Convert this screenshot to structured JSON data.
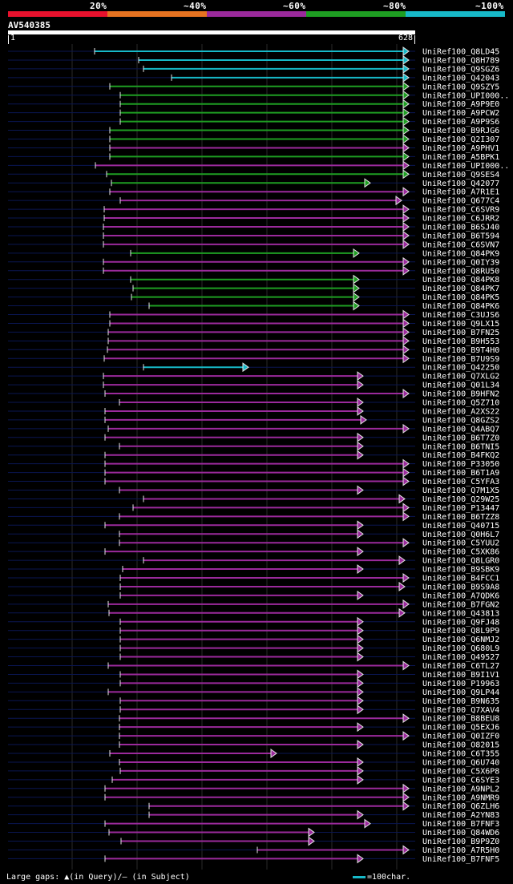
{
  "scale": {
    "labels": [
      "20%",
      "~40%",
      "~60%",
      "~80%",
      "~100%"
    ],
    "colors": [
      "#e8112d",
      "#e67321",
      "#9b2a9c",
      "#1e9e22",
      "#17b9c8"
    ]
  },
  "query": {
    "name": "AV540385",
    "start": "1",
    "end": "628"
  },
  "footer": {
    "gaps_text": "Large gaps: ▲(in Query)/– (in Subject)",
    "legend_text": "=100char."
  },
  "colors": {
    "cyan": "#17b9c8",
    "green": "#1e9e22",
    "purple": "#9b2a9c",
    "navy": "#0a1652",
    "head": "#e6e6e6"
  },
  "hits": [
    {
      "label": "UniRef100_Q8LD45",
      "color": "cyan"
    },
    {
      "label": "UniRef100_Q8H789",
      "color": "cyan"
    },
    {
      "label": "UniRef100_Q9SGZ6",
      "color": "cyan"
    },
    {
      "label": "UniRef100_Q42043",
      "color": "cyan"
    },
    {
      "label": "UniRef100_Q9SZY5",
      "color": "green"
    },
    {
      "label": "UniRef100_UPI000..",
      "color": "green"
    },
    {
      "label": "UniRef100_A9P9E0",
      "color": "green"
    },
    {
      "label": "UniRef100_A9PCW2",
      "color": "green"
    },
    {
      "label": "UniRef100_A9P9S6",
      "color": "green"
    },
    {
      "label": "UniRef100_B9RJG6",
      "color": "green"
    },
    {
      "label": "UniRef100_Q2I307",
      "color": "green"
    },
    {
      "label": "UniRef100_A9PHV1",
      "color": "purple"
    },
    {
      "label": "UniRef100_A5BPK1",
      "color": "green"
    },
    {
      "label": "UniRef100_UPI000..",
      "color": "purple"
    },
    {
      "label": "UniRef100_Q9SES4",
      "color": "green"
    },
    {
      "label": "UniRef100_Q42077",
      "color": "green"
    },
    {
      "label": "UniRef100_A7R1E1",
      "color": "purple"
    },
    {
      "label": "UniRef100_Q677C4",
      "color": "purple"
    },
    {
      "label": "UniRef100_C6SVR9",
      "color": "purple"
    },
    {
      "label": "UniRef100_C6JRR2",
      "color": "purple"
    },
    {
      "label": "UniRef100_B6SJ40",
      "color": "purple"
    },
    {
      "label": "UniRef100_B6T594",
      "color": "purple"
    },
    {
      "label": "UniRef100_C6SVN7",
      "color": "purple"
    },
    {
      "label": "UniRef100_Q84PK9",
      "color": "green"
    },
    {
      "label": "UniRef100_Q0IY39",
      "color": "purple"
    },
    {
      "label": "UniRef100_Q8RU50",
      "color": "purple"
    },
    {
      "label": "UniRef100_Q84PK8",
      "color": "green"
    },
    {
      "label": "UniRef100_Q84PK7",
      "color": "green"
    },
    {
      "label": "UniRef100_Q84PK5",
      "color": "green"
    },
    {
      "label": "UniRef100_Q84PK6",
      "color": "green"
    },
    {
      "label": "UniRef100_C3UJS6",
      "color": "purple"
    },
    {
      "label": "UniRef100_Q9LX15",
      "color": "purple"
    },
    {
      "label": "UniRef100_B7FN25",
      "color": "purple"
    },
    {
      "label": "UniRef100_B9H553",
      "color": "purple"
    },
    {
      "label": "UniRef100_B9T4H0",
      "color": "purple"
    },
    {
      "label": "UniRef100_B7U9S9",
      "color": "purple"
    },
    {
      "label": "UniRef100_Q42250",
      "color": "cyan"
    },
    {
      "label": "UniRef100_Q7XLG2",
      "color": "purple"
    },
    {
      "label": "UniRef100_Q01L34",
      "color": "purple"
    },
    {
      "label": "UniRef100_B9HFN2",
      "color": "purple"
    },
    {
      "label": "UniRef100_Q5Z710",
      "color": "purple"
    },
    {
      "label": "UniRef100_A2XS22",
      "color": "purple"
    },
    {
      "label": "UniRef100_Q8GZS2",
      "color": "purple"
    },
    {
      "label": "UniRef100_Q4ABQ7",
      "color": "purple"
    },
    {
      "label": "UniRef100_B6T7Z0",
      "color": "purple"
    },
    {
      "label": "UniRef100_B6TNI5",
      "color": "purple"
    },
    {
      "label": "UniRef100_B4FKQ2",
      "color": "purple"
    },
    {
      "label": "UniRef100_P33050",
      "color": "purple"
    },
    {
      "label": "UniRef100_B6T1A9",
      "color": "purple"
    },
    {
      "label": "UniRef100_C5YFA3",
      "color": "purple"
    },
    {
      "label": "UniRef100_Q7M1X5",
      "color": "purple"
    },
    {
      "label": "UniRef100_Q29W25",
      "color": "purple"
    },
    {
      "label": "UniRef100_P13447",
      "color": "purple"
    },
    {
      "label": "UniRef100_B6TZZ8",
      "color": "purple"
    },
    {
      "label": "UniRef100_Q40715",
      "color": "purple"
    },
    {
      "label": "UniRef100_Q0H6L7",
      "color": "purple"
    },
    {
      "label": "UniRef100_C5YUU2",
      "color": "purple"
    },
    {
      "label": "UniRef100_C5XK86",
      "color": "purple"
    },
    {
      "label": "UniRef100_Q8LGR0",
      "color": "purple"
    },
    {
      "label": "UniRef100_B9SBK9",
      "color": "purple"
    },
    {
      "label": "UniRef100_B4FCC1",
      "color": "purple"
    },
    {
      "label": "UniRef100_B9S9A8",
      "color": "purple"
    },
    {
      "label": "UniRef100_A7QDK6",
      "color": "purple"
    },
    {
      "label": "UniRef100_B7FGN2",
      "color": "purple"
    },
    {
      "label": "UniRef100_Q43813",
      "color": "purple"
    },
    {
      "label": "UniRef100_Q9FJ48",
      "color": "purple"
    },
    {
      "label": "UniRef100_Q8L9P9",
      "color": "purple"
    },
    {
      "label": "UniRef100_Q6NMJ2",
      "color": "purple"
    },
    {
      "label": "UniRef100_Q680L9",
      "color": "purple"
    },
    {
      "label": "UniRef100_Q49527",
      "color": "purple"
    },
    {
      "label": "UniRef100_C6TL27",
      "color": "purple"
    },
    {
      "label": "UniRef100_B9I1V1",
      "color": "purple"
    },
    {
      "label": "UniRef100_P19963",
      "color": "purple"
    },
    {
      "label": "UniRef100_Q9LP44",
      "color": "purple"
    },
    {
      "label": "UniRef100_B9N635",
      "color": "purple"
    },
    {
      "label": "UniRef100_Q7XAV4",
      "color": "purple"
    },
    {
      "label": "UniRef100_B8BEU8",
      "color": "purple"
    },
    {
      "label": "UniRef100_Q5EXJ6",
      "color": "purple"
    },
    {
      "label": "UniRef100_Q0IZF0",
      "color": "purple"
    },
    {
      "label": "UniRef100_O82015",
      "color": "purple"
    },
    {
      "label": "UniRef100_C6T355",
      "color": "purple"
    },
    {
      "label": "UniRef100_Q6U740",
      "color": "purple"
    },
    {
      "label": "UniRef100_C5X6P8",
      "color": "purple"
    },
    {
      "label": "UniRef100_C6SYE3",
      "color": "purple"
    },
    {
      "label": "UniRef100_A9NPL2",
      "color": "purple"
    },
    {
      "label": "UniRef100_A9NMR9",
      "color": "purple"
    },
    {
      "label": "UniRef100_Q6ZLH6",
      "color": "purple"
    },
    {
      "label": "UniRef100_A2YN83",
      "color": "purple"
    },
    {
      "label": "UniRef100_B7FNF3",
      "color": "purple"
    },
    {
      "label": "UniRef100_Q84WD6",
      "color": "purple"
    },
    {
      "label": "UniRef100_B9P9Z0",
      "color": "purple"
    },
    {
      "label": "UniRef100_A7R5H0",
      "color": "purple"
    },
    {
      "label": "UniRef100_B7FNF5",
      "color": "purple"
    }
  ]
}
